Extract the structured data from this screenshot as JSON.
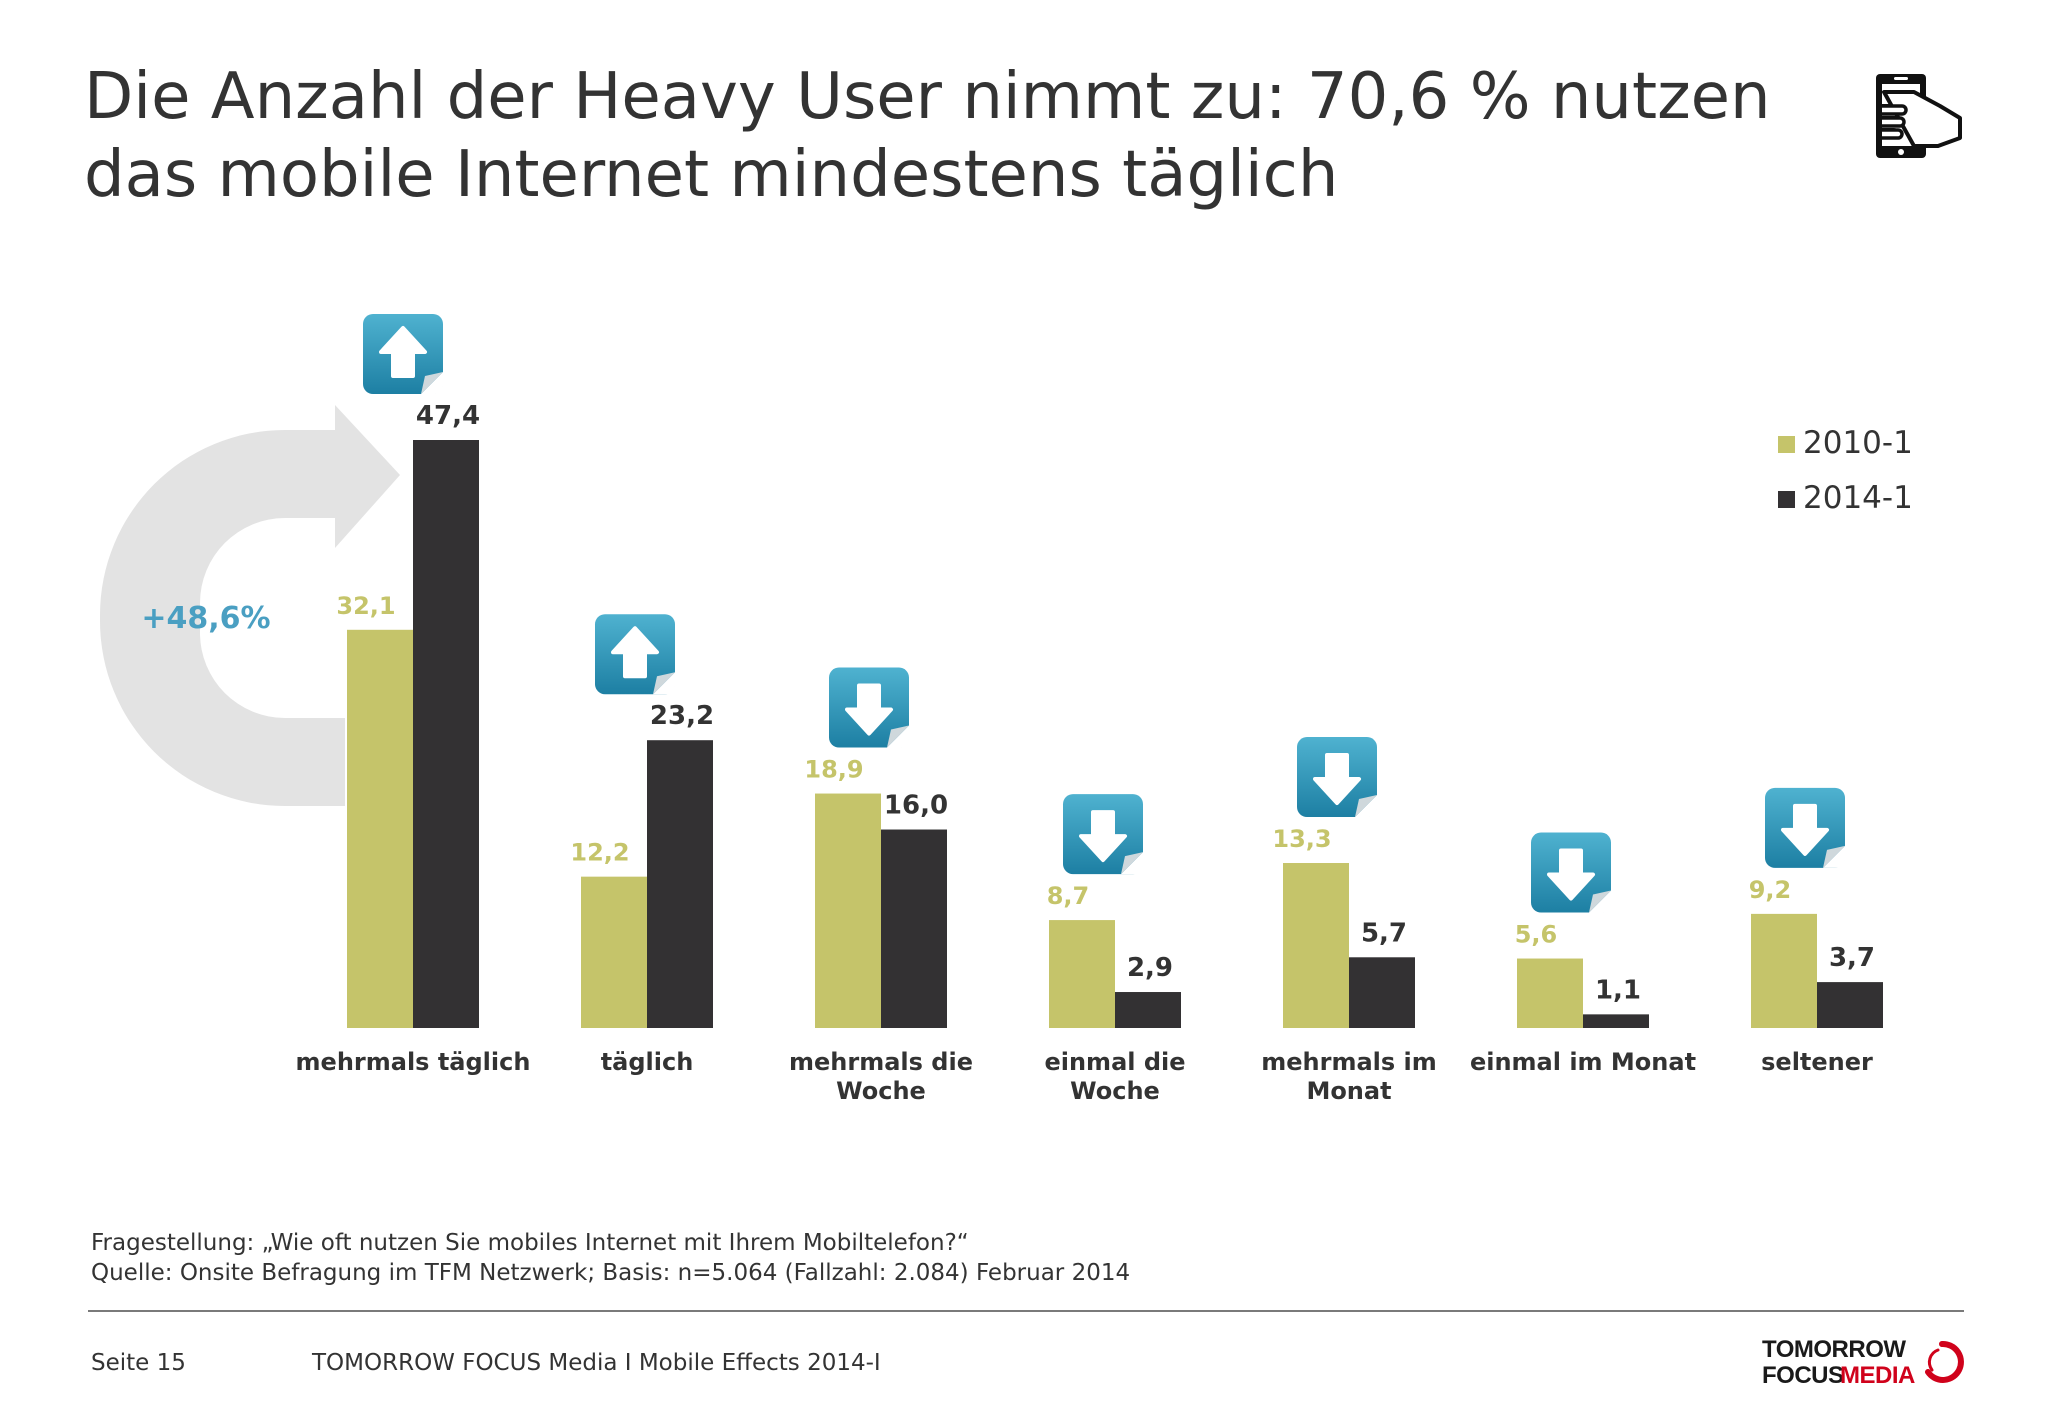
{
  "title": {
    "line1": "Die Anzahl der Heavy User nimmt zu: 70,6 % nutzen",
    "line2": "das mobile Internet mindestens täglich"
  },
  "icons": {
    "header": "mobile-touch-icon",
    "trend_up": "arrow-up-icon",
    "trend_down": "arrow-down-icon"
  },
  "chart_data": {
    "type": "bar",
    "categories": [
      [
        "mehrmals täglich"
      ],
      [
        "täglich"
      ],
      [
        "mehrmals die",
        "Woche"
      ],
      [
        "einmal die",
        "Woche"
      ],
      [
        "mehrmals im",
        "Monat"
      ],
      [
        "einmal im Monat"
      ],
      [
        "seltener"
      ]
    ],
    "series": [
      {
        "name": "2010-1",
        "color": "#c5c46a",
        "values": [
          32.1,
          12.2,
          18.9,
          8.7,
          13.3,
          5.6,
          9.2
        ],
        "labels": [
          "32,1",
          "12,2",
          "18,9",
          "8,7",
          "13,3",
          "5,6",
          "9,2"
        ]
      },
      {
        "name": "2014-1",
        "color": "#333133",
        "values": [
          47.4,
          23.2,
          16.0,
          2.9,
          5.7,
          1.1,
          3.7
        ],
        "labels": [
          "47,4",
          "23,2",
          "16,0",
          "2,9",
          "5,7",
          "1,1",
          "3,7"
        ]
      }
    ],
    "trends": [
      "up",
      "up",
      "down",
      "down",
      "down",
      "down",
      "down"
    ],
    "annotation": {
      "text": "+48,6%",
      "color": "#4a9fc2"
    },
    "ylim": [
      0,
      47.4
    ],
    "legend_position": "top-right",
    "title": "",
    "xlabel": "",
    "ylabel": ""
  },
  "footnote": {
    "question": "Fragestellung: „Wie oft nutzen Sie mobiles Internet mit Ihrem Mobiltelefon?“",
    "source": "Quelle: Onsite Befragung im TFM Netzwerk; Basis: n=5.064 (Fallzahl: 2.084) Februar 2014"
  },
  "footer": {
    "page": "Seite 15",
    "brand": "TOMORROW FOCUS Media  I  Mobile Effects 2014-I",
    "logo_line1": "TOMORROW",
    "logo_focus": "FOCUS",
    "logo_media": "MEDIA"
  }
}
